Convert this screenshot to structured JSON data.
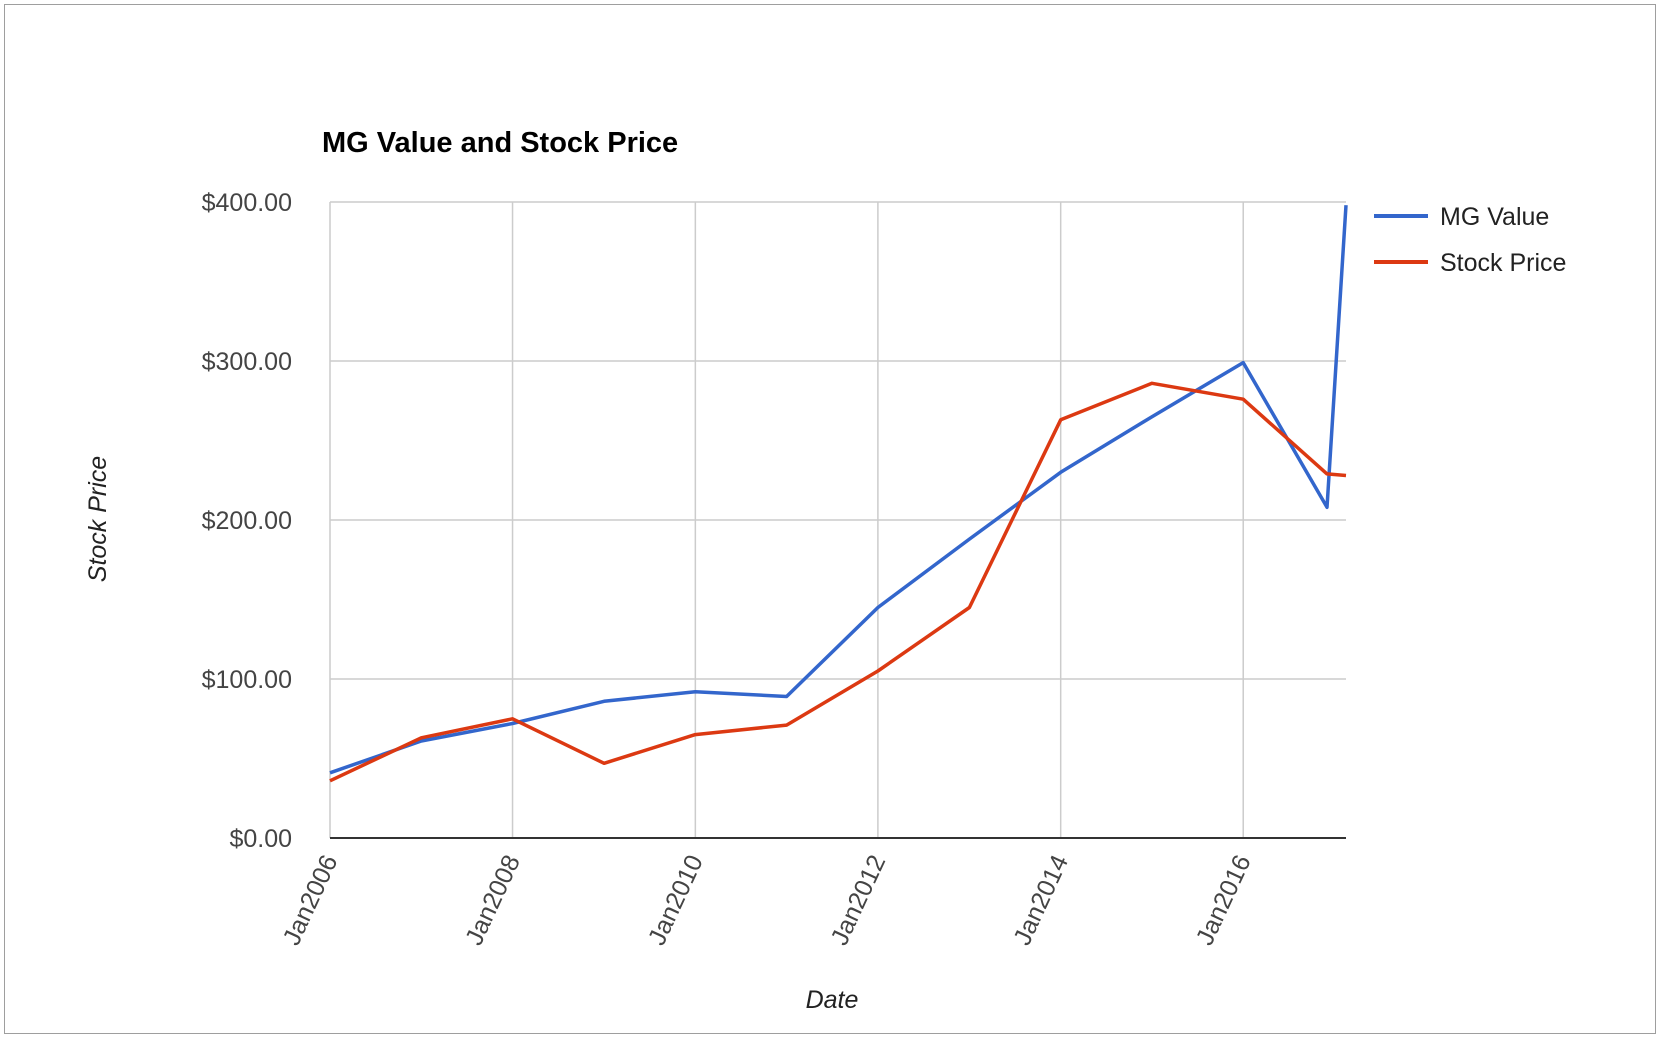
{
  "chart_data": {
    "type": "line",
    "title": "MG Value and Stock Price",
    "xlabel": "Date",
    "ylabel": "Stock Price",
    "ylim": [
      0,
      400
    ],
    "yticks": [
      0,
      100,
      200,
      300,
      400
    ],
    "ytick_labels": [
      "$0.00",
      "$100.00",
      "$200.00",
      "$300.00",
      "$400.00"
    ],
    "xlim": [
      "2006-01-01",
      "2017-02-15"
    ],
    "xticks": [
      "2006-01-01",
      "2008-01-01",
      "2010-01-01",
      "2012-01-01",
      "2014-01-01",
      "2016-01-01"
    ],
    "xtick_labels": [
      "Jan2006",
      "Jan2008",
      "Jan2010",
      "Jan2012",
      "Jan2014",
      "Jan2016"
    ],
    "grid": true,
    "legend_position": "right",
    "series": [
      {
        "name": "MG Value",
        "color": "#3366cc",
        "x": [
          "2006-01-01",
          "2007-01-01",
          "2008-01-01",
          "2009-01-01",
          "2010-01-01",
          "2011-01-01",
          "2012-01-01",
          "2013-01-01",
          "2014-01-01",
          "2015-01-01",
          "2016-01-01",
          "2016-12-01",
          "2017-02-15"
        ],
        "values": [
          41,
          61,
          72,
          86,
          92,
          89,
          145,
          188,
          230,
          265,
          299,
          208,
          398
        ]
      },
      {
        "name": "Stock Price",
        "color": "#dc3912",
        "x": [
          "2006-01-01",
          "2007-01-01",
          "2008-01-01",
          "2009-01-01",
          "2010-01-01",
          "2011-01-01",
          "2012-01-01",
          "2013-01-01",
          "2014-01-01",
          "2015-01-01",
          "2016-01-01",
          "2016-12-01",
          "2017-02-15"
        ],
        "values": [
          36,
          63,
          75,
          47,
          65,
          71,
          105,
          145,
          263,
          286,
          276,
          229,
          228
        ]
      }
    ]
  }
}
